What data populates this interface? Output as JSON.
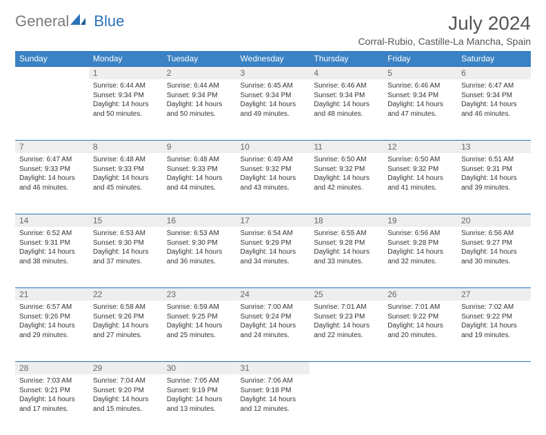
{
  "brand": {
    "part1": "General",
    "part2": "Blue"
  },
  "title": "July 2024",
  "location": "Corral-Rubio, Castille-La Mancha, Spain",
  "day_headers": [
    "Sunday",
    "Monday",
    "Tuesday",
    "Wednesday",
    "Thursday",
    "Friday",
    "Saturday"
  ],
  "colors": {
    "header_bg": "#3b82c4",
    "header_fg": "#ffffff",
    "daynum_bg": "#eeeeee",
    "border": "#2b72b8",
    "logo_gray": "#7a7a7a",
    "logo_blue": "#2b72b8"
  },
  "weeks": [
    [
      {
        "n": "",
        "sr": "",
        "ss": "",
        "dl": ""
      },
      {
        "n": "1",
        "sr": "Sunrise: 6:44 AM",
        "ss": "Sunset: 9:34 PM",
        "dl": "Daylight: 14 hours and 50 minutes."
      },
      {
        "n": "2",
        "sr": "Sunrise: 6:44 AM",
        "ss": "Sunset: 9:34 PM",
        "dl": "Daylight: 14 hours and 50 minutes."
      },
      {
        "n": "3",
        "sr": "Sunrise: 6:45 AM",
        "ss": "Sunset: 9:34 PM",
        "dl": "Daylight: 14 hours and 49 minutes."
      },
      {
        "n": "4",
        "sr": "Sunrise: 6:46 AM",
        "ss": "Sunset: 9:34 PM",
        "dl": "Daylight: 14 hours and 48 minutes."
      },
      {
        "n": "5",
        "sr": "Sunrise: 6:46 AM",
        "ss": "Sunset: 9:34 PM",
        "dl": "Daylight: 14 hours and 47 minutes."
      },
      {
        "n": "6",
        "sr": "Sunrise: 6:47 AM",
        "ss": "Sunset: 9:34 PM",
        "dl": "Daylight: 14 hours and 46 minutes."
      }
    ],
    [
      {
        "n": "7",
        "sr": "Sunrise: 6:47 AM",
        "ss": "Sunset: 9:33 PM",
        "dl": "Daylight: 14 hours and 46 minutes."
      },
      {
        "n": "8",
        "sr": "Sunrise: 6:48 AM",
        "ss": "Sunset: 9:33 PM",
        "dl": "Daylight: 14 hours and 45 minutes."
      },
      {
        "n": "9",
        "sr": "Sunrise: 6:48 AM",
        "ss": "Sunset: 9:33 PM",
        "dl": "Daylight: 14 hours and 44 minutes."
      },
      {
        "n": "10",
        "sr": "Sunrise: 6:49 AM",
        "ss": "Sunset: 9:32 PM",
        "dl": "Daylight: 14 hours and 43 minutes."
      },
      {
        "n": "11",
        "sr": "Sunrise: 6:50 AM",
        "ss": "Sunset: 9:32 PM",
        "dl": "Daylight: 14 hours and 42 minutes."
      },
      {
        "n": "12",
        "sr": "Sunrise: 6:50 AM",
        "ss": "Sunset: 9:32 PM",
        "dl": "Daylight: 14 hours and 41 minutes."
      },
      {
        "n": "13",
        "sr": "Sunrise: 6:51 AM",
        "ss": "Sunset: 9:31 PM",
        "dl": "Daylight: 14 hours and 39 minutes."
      }
    ],
    [
      {
        "n": "14",
        "sr": "Sunrise: 6:52 AM",
        "ss": "Sunset: 9:31 PM",
        "dl": "Daylight: 14 hours and 38 minutes."
      },
      {
        "n": "15",
        "sr": "Sunrise: 6:53 AM",
        "ss": "Sunset: 9:30 PM",
        "dl": "Daylight: 14 hours and 37 minutes."
      },
      {
        "n": "16",
        "sr": "Sunrise: 6:53 AM",
        "ss": "Sunset: 9:30 PM",
        "dl": "Daylight: 14 hours and 36 minutes."
      },
      {
        "n": "17",
        "sr": "Sunrise: 6:54 AM",
        "ss": "Sunset: 9:29 PM",
        "dl": "Daylight: 14 hours and 34 minutes."
      },
      {
        "n": "18",
        "sr": "Sunrise: 6:55 AM",
        "ss": "Sunset: 9:28 PM",
        "dl": "Daylight: 14 hours and 33 minutes."
      },
      {
        "n": "19",
        "sr": "Sunrise: 6:56 AM",
        "ss": "Sunset: 9:28 PM",
        "dl": "Daylight: 14 hours and 32 minutes."
      },
      {
        "n": "20",
        "sr": "Sunrise: 6:56 AM",
        "ss": "Sunset: 9:27 PM",
        "dl": "Daylight: 14 hours and 30 minutes."
      }
    ],
    [
      {
        "n": "21",
        "sr": "Sunrise: 6:57 AM",
        "ss": "Sunset: 9:26 PM",
        "dl": "Daylight: 14 hours and 29 minutes."
      },
      {
        "n": "22",
        "sr": "Sunrise: 6:58 AM",
        "ss": "Sunset: 9:26 PM",
        "dl": "Daylight: 14 hours and 27 minutes."
      },
      {
        "n": "23",
        "sr": "Sunrise: 6:59 AM",
        "ss": "Sunset: 9:25 PM",
        "dl": "Daylight: 14 hours and 25 minutes."
      },
      {
        "n": "24",
        "sr": "Sunrise: 7:00 AM",
        "ss": "Sunset: 9:24 PM",
        "dl": "Daylight: 14 hours and 24 minutes."
      },
      {
        "n": "25",
        "sr": "Sunrise: 7:01 AM",
        "ss": "Sunset: 9:23 PM",
        "dl": "Daylight: 14 hours and 22 minutes."
      },
      {
        "n": "26",
        "sr": "Sunrise: 7:01 AM",
        "ss": "Sunset: 9:22 PM",
        "dl": "Daylight: 14 hours and 20 minutes."
      },
      {
        "n": "27",
        "sr": "Sunrise: 7:02 AM",
        "ss": "Sunset: 9:22 PM",
        "dl": "Daylight: 14 hours and 19 minutes."
      }
    ],
    [
      {
        "n": "28",
        "sr": "Sunrise: 7:03 AM",
        "ss": "Sunset: 9:21 PM",
        "dl": "Daylight: 14 hours and 17 minutes."
      },
      {
        "n": "29",
        "sr": "Sunrise: 7:04 AM",
        "ss": "Sunset: 9:20 PM",
        "dl": "Daylight: 14 hours and 15 minutes."
      },
      {
        "n": "30",
        "sr": "Sunrise: 7:05 AM",
        "ss": "Sunset: 9:19 PM",
        "dl": "Daylight: 14 hours and 13 minutes."
      },
      {
        "n": "31",
        "sr": "Sunrise: 7:06 AM",
        "ss": "Sunset: 9:18 PM",
        "dl": "Daylight: 14 hours and 12 minutes."
      },
      {
        "n": "",
        "sr": "",
        "ss": "",
        "dl": ""
      },
      {
        "n": "",
        "sr": "",
        "ss": "",
        "dl": ""
      },
      {
        "n": "",
        "sr": "",
        "ss": "",
        "dl": ""
      }
    ]
  ]
}
